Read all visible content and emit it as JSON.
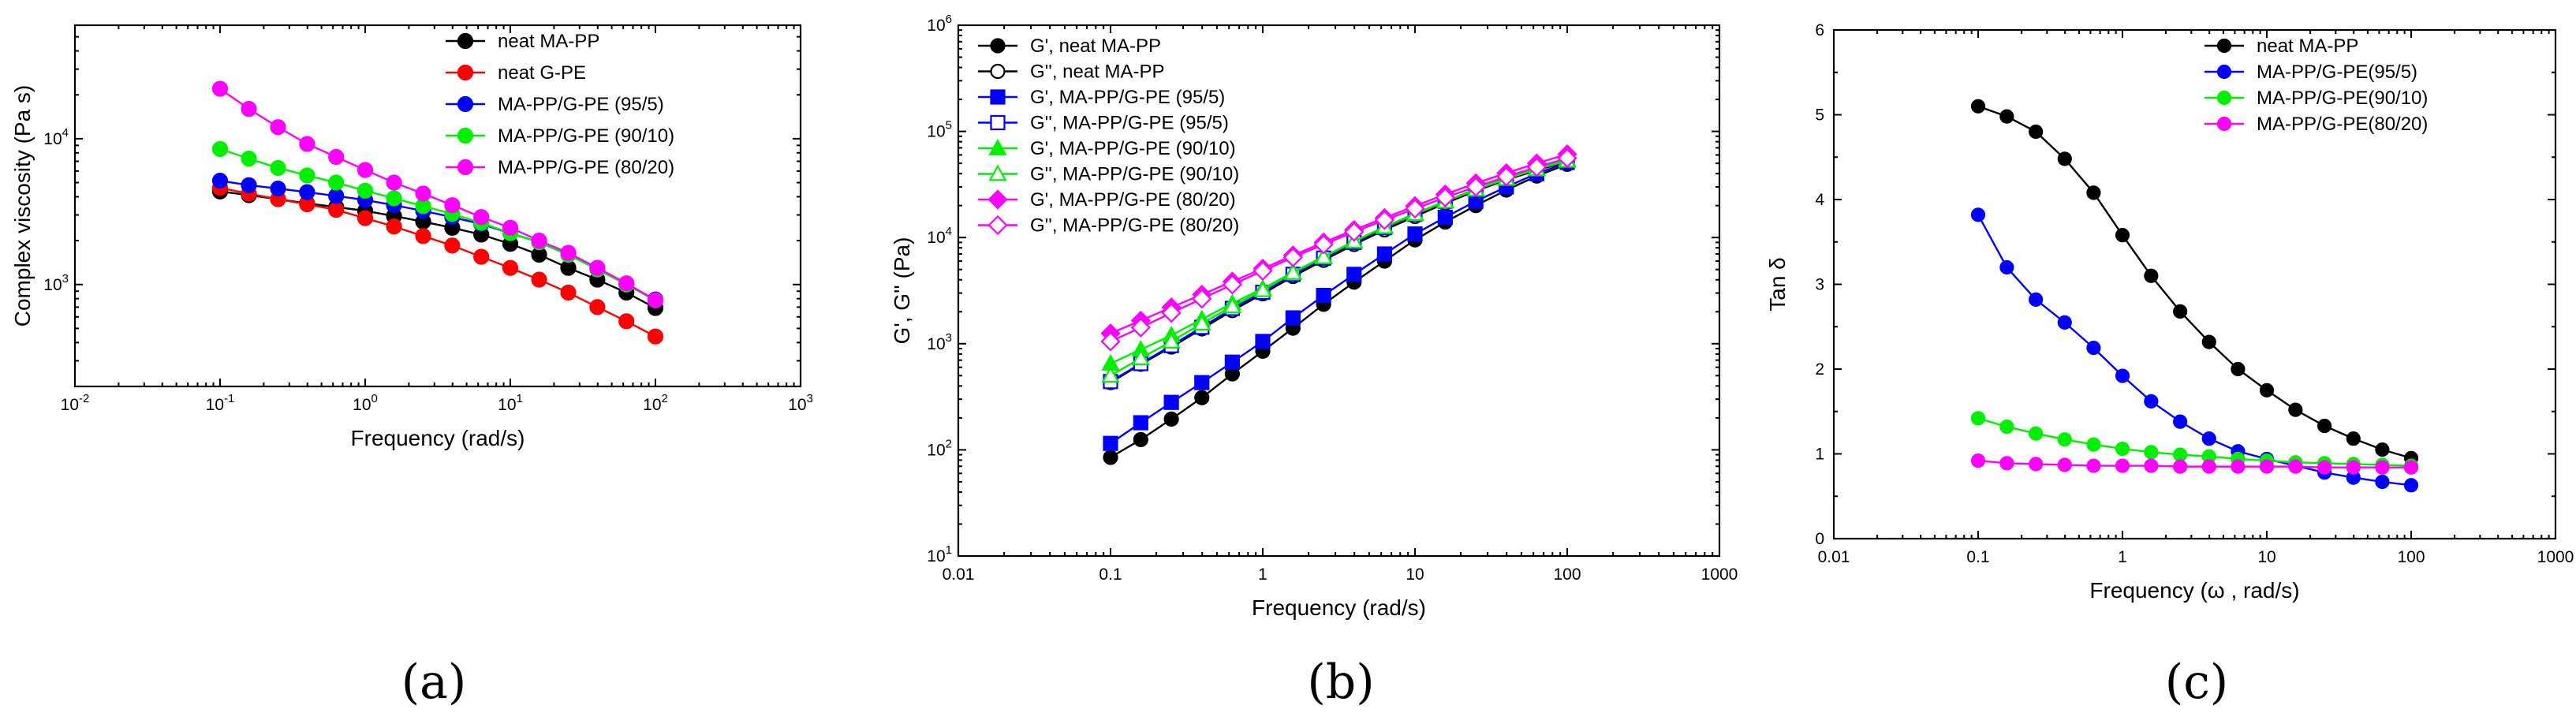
{
  "chart_data": [
    {
      "type": "line",
      "panel": "(a)",
      "xlabel": "Frequency (rad/s)",
      "ylabel": "Complex viscosity (Pa s)",
      "xscale": "log",
      "yscale": "log",
      "xlim": [
        0.01,
        1000
      ],
      "ylim": [
        200,
        60000
      ],
      "x_ticks": [
        {
          "v": 0.01,
          "b": "10",
          "e": "-2"
        },
        {
          "v": 0.1,
          "b": "10",
          "e": "-1"
        },
        {
          "v": 1,
          "b": "10",
          "e": "0"
        },
        {
          "v": 10,
          "b": "10",
          "e": "1"
        },
        {
          "v": 100,
          "b": "10",
          "e": "2"
        },
        {
          "v": 1000,
          "b": "10",
          "e": "3"
        }
      ],
      "y_ticks": [
        {
          "v": 1000,
          "b": "10",
          "e": "3"
        },
        {
          "v": 10000,
          "b": "10",
          "e": "4"
        }
      ],
      "legend_position": "top-right",
      "x": [
        0.1,
        0.158,
        0.251,
        0.398,
        0.631,
        1,
        1.58,
        2.51,
        3.98,
        6.31,
        10,
        15.8,
        25.1,
        39.8,
        63.1,
        100
      ],
      "series": [
        {
          "name": "neat MA-PP",
          "color": "#000000",
          "marker": "circle-filled",
          "values": [
            4350,
            4100,
            3850,
            3600,
            3400,
            3200,
            2950,
            2700,
            2450,
            2200,
            1900,
            1600,
            1300,
            1080,
            880,
            690
          ]
        },
        {
          "name": "neat G-PE",
          "color": "#ff0000",
          "marker": "circle-filled",
          "values": [
            4600,
            4200,
            3850,
            3550,
            3250,
            2850,
            2500,
            2150,
            1850,
            1550,
            1300,
            1080,
            880,
            700,
            560,
            440
          ]
        },
        {
          "name": "MA-PP/G-PE (95/5)",
          "color": "#0000ff",
          "marker": "circle-filled",
          "values": [
            5150,
            4800,
            4550,
            4300,
            4050,
            3800,
            3500,
            3200,
            2900,
            2600,
            2250,
            1950,
            1600,
            1300,
            1000,
            790
          ]
        },
        {
          "name": "MA-PP/G-PE (90/10)",
          "color": "#00ee00",
          "marker": "circle-filled",
          "values": [
            8500,
            7300,
            6300,
            5600,
            5000,
            4400,
            3900,
            3450,
            3050,
            2650,
            2250,
            1950,
            1600,
            1270,
            1000,
            780
          ]
        },
        {
          "name": "MA-PP/G-PE (80/20)",
          "color": "#ff00ff",
          "marker": "circle-filled",
          "values": [
            22000,
            16000,
            12000,
            9200,
            7500,
            6100,
            5000,
            4200,
            3500,
            2900,
            2450,
            2000,
            1650,
            1300,
            1020,
            780
          ]
        }
      ]
    },
    {
      "type": "line",
      "panel": "(b)",
      "xlabel": "Frequency (rad/s)",
      "ylabel": "G', G'' (Pa)",
      "xscale": "log",
      "yscale": "log",
      "xlim": [
        0.01,
        1000
      ],
      "ylim": [
        10,
        1000000
      ],
      "x_ticks": [
        {
          "v": 0.01,
          "t": "0.01"
        },
        {
          "v": 0.1,
          "t": "0.1"
        },
        {
          "v": 1,
          "t": "1"
        },
        {
          "v": 10,
          "t": "10"
        },
        {
          "v": 100,
          "t": "100"
        },
        {
          "v": 1000,
          "t": "1000"
        }
      ],
      "y_ticks": [
        {
          "v": 10,
          "b": "10",
          "e": "1"
        },
        {
          "v": 100,
          "b": "10",
          "e": "2"
        },
        {
          "v": 1000,
          "b": "10",
          "e": "3"
        },
        {
          "v": 10000,
          "b": "10",
          "e": "4"
        },
        {
          "v": 100000,
          "b": "10",
          "e": "5"
        },
        {
          "v": 1000000,
          "b": "10",
          "e": "6"
        }
      ],
      "legend_position": "top-left",
      "x": [
        0.1,
        0.158,
        0.251,
        0.398,
        0.631,
        1,
        1.58,
        2.51,
        3.98,
        6.31,
        10,
        15.8,
        25.1,
        39.8,
        63.1,
        100
      ],
      "series": [
        {
          "name": "G', neat MA-PP",
          "color": "#000000",
          "marker": "circle-filled",
          "values": [
            85,
            125,
            195,
            310,
            520,
            850,
            1400,
            2350,
            3800,
            6000,
            9500,
            14000,
            20000,
            28000,
            38000,
            49000
          ]
        },
        {
          "name": "G'', neat MA-PP",
          "color": "#000000",
          "marker": "circle-open",
          "values": [
            430,
            640,
            930,
            1380,
            2050,
            2950,
            4300,
            6100,
            8600,
            11800,
            15800,
            21000,
            27500,
            35000,
            43000,
            52000
          ]
        },
        {
          "name": "G', MA-PP/G-PE (95/5)",
          "color": "#0000ff",
          "marker": "square-filled",
          "values": [
            115,
            180,
            280,
            430,
            670,
            1050,
            1750,
            2850,
            4500,
            7000,
            10800,
            15500,
            22000,
            30000,
            40000,
            51000
          ]
        },
        {
          "name": "G'', MA-PP/G-PE (95/5)",
          "color": "#0000ff",
          "marker": "square-open",
          "values": [
            440,
            650,
            960,
            1430,
            2150,
            3050,
            4500,
            6400,
            9000,
            12400,
            16600,
            22000,
            28500,
            36000,
            44000,
            53000
          ]
        },
        {
          "name": "G', MA-PP/G-PE (90/10)",
          "color": "#00ee00",
          "marker": "triangle-filled",
          "values": [
            650,
            880,
            1200,
            1700,
            2400,
            3300,
            4700,
            6600,
            9200,
            12600,
            16800,
            22000,
            28500,
            36000,
            44500,
            54000
          ]
        },
        {
          "name": "G'', MA-PP/G-PE (90/10)",
          "color": "#00ee00",
          "marker": "triangle-open",
          "values": [
            500,
            730,
            1050,
            1550,
            2250,
            3200,
            4650,
            6550,
            9200,
            12600,
            16700,
            21900,
            28300,
            35800,
            44000,
            53000
          ]
        },
        {
          "name": "G', MA-PP/G-PE (80/20)",
          "color": "#ff00ff",
          "marker": "diamond-filled",
          "values": [
            1250,
            1650,
            2200,
            2900,
            3850,
            5100,
            6800,
            9000,
            11800,
            15300,
            19800,
            25500,
            32500,
            40500,
            50000,
            61000
          ]
        },
        {
          "name": "G'', MA-PP/G-PE (80/20)",
          "color": "#ff00ff",
          "marker": "diamond-open",
          "values": [
            1050,
            1420,
            1950,
            2650,
            3600,
            4850,
            6500,
            8600,
            11300,
            14600,
            18700,
            23800,
            30000,
            37500,
            46000,
            56000
          ]
        }
      ]
    },
    {
      "type": "line",
      "panel": "(c)",
      "xlabel": "Frequency (ω , rad/s)",
      "ylabel": "Tan δ",
      "xscale": "log",
      "yscale": "linear",
      "xlim": [
        0.01,
        1000
      ],
      "ylim": [
        0,
        6
      ],
      "x_ticks": [
        {
          "v": 0.01,
          "t": "0.01"
        },
        {
          "v": 0.1,
          "t": "0.1"
        },
        {
          "v": 1,
          "t": "1"
        },
        {
          "v": 10,
          "t": "10"
        },
        {
          "v": 100,
          "t": "100"
        },
        {
          "v": 1000,
          "t": "1000"
        }
      ],
      "y_ticks": [
        {
          "v": 0,
          "t": "0"
        },
        {
          "v": 1,
          "t": "1"
        },
        {
          "v": 2,
          "t": "2"
        },
        {
          "v": 3,
          "t": "3"
        },
        {
          "v": 4,
          "t": "4"
        },
        {
          "v": 5,
          "t": "5"
        },
        {
          "v": 6,
          "t": "6"
        }
      ],
      "legend_position": "top-right",
      "x": [
        0.1,
        0.158,
        0.251,
        0.398,
        0.631,
        1,
        1.58,
        2.51,
        3.98,
        6.31,
        10,
        15.8,
        25.1,
        39.8,
        63.1,
        100
      ],
      "series": [
        {
          "name": "neat MA-PP",
          "color": "#000000",
          "marker": "circle-filled",
          "values": [
            5.1,
            4.98,
            4.8,
            4.48,
            4.08,
            3.58,
            3.1,
            2.68,
            2.32,
            2.0,
            1.75,
            1.52,
            1.33,
            1.18,
            1.05,
            0.95
          ]
        },
        {
          "name": "MA-PP/G-PE(95/5)",
          "color": "#0000ff",
          "marker": "circle-filled",
          "values": [
            3.82,
            3.2,
            2.82,
            2.55,
            2.25,
            1.92,
            1.62,
            1.38,
            1.18,
            1.03,
            0.94,
            0.86,
            0.78,
            0.72,
            0.67,
            0.63
          ]
        },
        {
          "name": "MA-PP/G-PE(90/10)",
          "color": "#00ee00",
          "marker": "circle-filled",
          "values": [
            1.42,
            1.32,
            1.24,
            1.17,
            1.11,
            1.06,
            1.02,
            0.99,
            0.97,
            0.94,
            0.92,
            0.9,
            0.89,
            0.88,
            0.87,
            0.86
          ]
        },
        {
          "name": "MA-PP/G-PE(80/20)",
          "color": "#ff00ff",
          "marker": "circle-filled",
          "values": [
            0.92,
            0.89,
            0.88,
            0.87,
            0.86,
            0.86,
            0.86,
            0.85,
            0.85,
            0.85,
            0.85,
            0.85,
            0.84,
            0.84,
            0.84,
            0.84
          ]
        }
      ]
    }
  ]
}
